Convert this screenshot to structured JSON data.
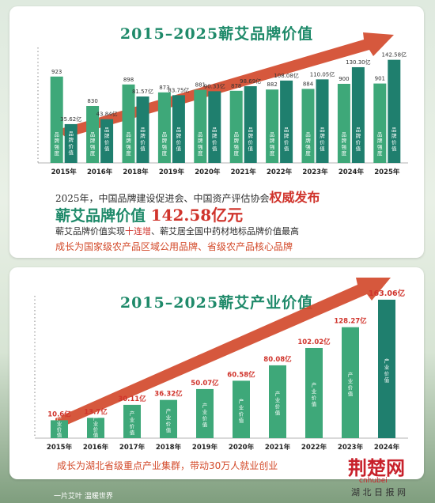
{
  "chart_data": [
    {
      "type": "bar",
      "title": "2015–2025蕲艾品牌价值",
      "categories": [
        "2015年",
        "2016年",
        "2018年",
        "2019年",
        "2020年",
        "2021年",
        "2022年",
        "2023年",
        "2024年",
        "2025年"
      ],
      "series": [
        {
          "name": "品牌强度",
          "values": [
            923,
            830,
            898,
            873,
            881,
            878,
            882,
            884,
            900,
            901
          ]
        },
        {
          "name": "品牌价值",
          "values": [
            35.62,
            43.84,
            81.57,
            83.75,
            90.33,
            98.69,
            108.08,
            110.05,
            130.3,
            142.58
          ],
          "unit": "亿"
        }
      ],
      "labels": {
        "strength": [
          "923",
          "830",
          "898",
          "873",
          "881",
          "878",
          "882",
          "884",
          "900",
          "901"
        ],
        "value": [
          "35.62亿",
          "43.84亿",
          "81.57亿",
          "83.75亿",
          "90.33亿",
          "98.69亿",
          "108.08亿",
          "110.05亿",
          "130.30亿",
          "142.58亿"
        ]
      },
      "bar_text": {
        "strength": [
          "品",
          "牌",
          "强",
          "度"
        ],
        "value": [
          "品",
          "牌",
          "价",
          "值"
        ]
      },
      "legend": "none"
    },
    {
      "type": "bar",
      "title": "2015–2025蕲艾产业价值",
      "categories": [
        "2015年",
        "2016年",
        "2017年",
        "2018年",
        "2019年",
        "2020年",
        "2021年",
        "2022年",
        "2023年",
        "2024年"
      ],
      "series": [
        {
          "name": "产业价值",
          "values": [
            10.6,
            13.7,
            30.11,
            36.32,
            50.07,
            60.58,
            80.08,
            102.02,
            128.27,
            163.06
          ],
          "unit": "亿"
        }
      ],
      "labels": [
        "10.6亿",
        "13.7亿",
        "30.11亿",
        "36.32亿",
        "50.07亿",
        "60.58亿",
        "80.08亿",
        "102.02亿",
        "128.27亿",
        "163.06亿"
      ],
      "bar_text": [
        "产",
        "业",
        "价",
        "值"
      ],
      "legend": "none"
    }
  ],
  "info": {
    "line1_prefix": "2025年，中国品牌建设促进会、中国资产评估协会",
    "line1_highlight": "权威发布",
    "headline_prefix": "蕲艾品牌价值",
    "headline_value": "142.58亿元",
    "line3_prefix": "蕲艾品牌价值实现",
    "line3_highlight": "十连增",
    "line3_suffix": "、蕲艾居全国中药材地标品牌价值最高",
    "line4": "成长为国家级农产品区域公用品牌、省级农产品核心品牌"
  },
  "footer": {
    "line": "成长为湖北省级重点产业集群，带动30万人就业创业",
    "slogan": "一片艾叶  温暖世界",
    "watermark_cn": "荆楚网",
    "watermark_domain": "cnhubei",
    "watermark_sub": "湖 北 日 报 网"
  },
  "colors": {
    "bar_light": "#3ea879",
    "bar_dark": "#1f7f6e",
    "title": "#1f8a6a",
    "arrow": "#d24a2c",
    "highlight": "#d0342c",
    "footer_text": "#d34a2a"
  }
}
